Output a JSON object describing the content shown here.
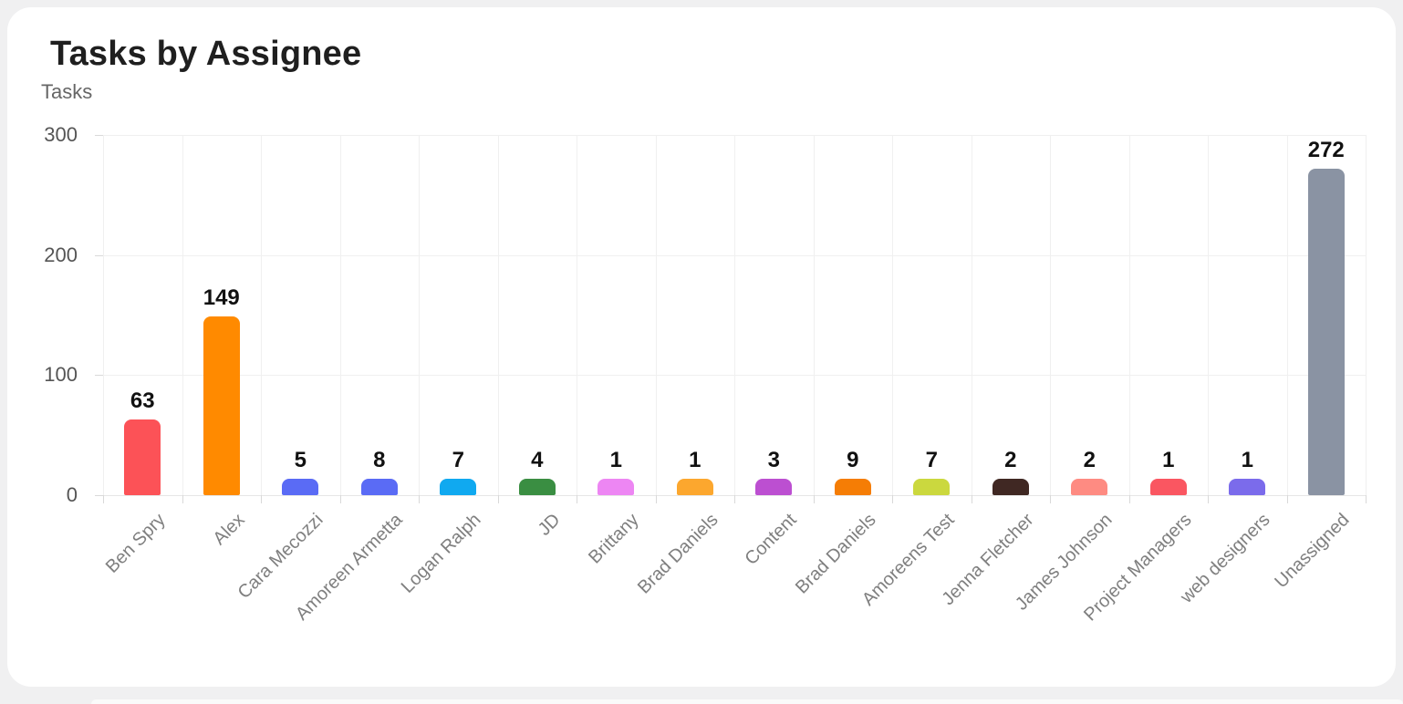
{
  "page": {
    "background": "#f0f0f1"
  },
  "card": {
    "title": "Tasks by Assignee",
    "subtitle": "Tasks"
  },
  "chart_data": {
    "type": "bar",
    "title": "Tasks by Assignee",
    "ylabel": "Tasks",
    "xlabel": "",
    "ylim": [
      0,
      300
    ],
    "yticks": [
      0,
      100,
      200,
      300
    ],
    "grid": true,
    "legend": false,
    "x_tick_rotation": -45,
    "value_labels": true,
    "categories": [
      "Ben Spry",
      "Alex",
      "Cara Mecozzi",
      "Amoreen Armetta",
      "Logan Ralph",
      "JD",
      "Brittany",
      "Brad Daniels",
      "Content",
      "Brad Daniels",
      "Amoreens Test",
      "Jenna Fletcher",
      "James Johnson",
      "Project Managers",
      "web designers",
      "Unassigned"
    ],
    "values": [
      63,
      149,
      5,
      8,
      7,
      4,
      1,
      1,
      3,
      9,
      7,
      2,
      2,
      1,
      1,
      272
    ],
    "bar_colors": [
      "#FC5257",
      "#FF8A00",
      "#5A6BF5",
      "#5A6BF5",
      "#10A9F0",
      "#3A8E42",
      "#ED86F3",
      "#FCA72E",
      "#BC4FD1",
      "#F57D05",
      "#CBD83E",
      "#402823",
      "#FE8B82",
      "#FA5661",
      "#7B6BEB",
      "#8A93A3"
    ]
  },
  "style": {
    "gridline": "#f0f0f0",
    "baseline": "#e6e6e6",
    "tick": "#d9d9d9",
    "y_label_color": "#555555",
    "x_label_color": "#7f7f7f",
    "value_label_color": "#111111",
    "title_color": "#1f1f1f",
    "subtitle_color": "#666666"
  }
}
